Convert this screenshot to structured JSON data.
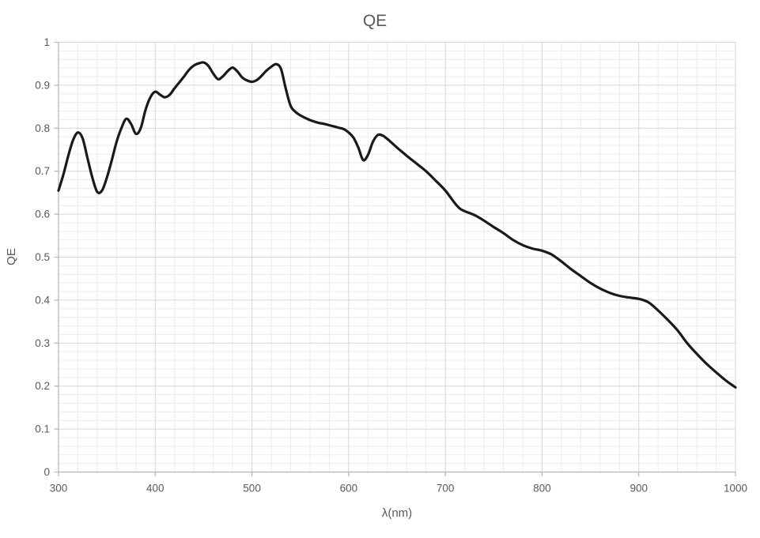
{
  "chart_data": {
    "type": "line",
    "title": "QE",
    "xlabel": "λ(nm)",
    "ylabel": "QE",
    "series_name": "QE",
    "xlim": [
      300,
      1000
    ],
    "ylim": [
      0,
      1
    ],
    "x_major_step": 100,
    "x_minor_step": 20,
    "y_major_step": 0.1,
    "y_minor_step": 0.02,
    "grid": true,
    "legend": false,
    "x_ticks": [
      300,
      400,
      500,
      600,
      700,
      800,
      900,
      1000
    ],
    "x_tick_labels": [
      "300",
      "400",
      "500",
      "600",
      "700",
      "800",
      "900",
      "1000"
    ],
    "y_ticks": [
      0,
      0.1,
      0.2,
      0.3,
      0.4,
      0.5,
      0.6,
      0.7,
      0.8,
      0.9,
      1
    ],
    "y_tick_labels": [
      "0",
      "0.1",
      "0.2",
      "0.3",
      "0.4",
      "0.5",
      "0.6",
      "0.7",
      "0.8",
      "0.9",
      "1"
    ],
    "x": [
      300,
      305,
      310,
      315,
      320,
      325,
      330,
      335,
      340,
      345,
      350,
      355,
      360,
      365,
      370,
      375,
      380,
      385,
      390,
      395,
      400,
      405,
      410,
      415,
      420,
      425,
      430,
      435,
      440,
      445,
      450,
      455,
      460,
      465,
      470,
      475,
      480,
      485,
      490,
      495,
      500,
      505,
      510,
      515,
      520,
      525,
      530,
      535,
      540,
      545,
      550,
      555,
      560,
      565,
      570,
      575,
      580,
      585,
      590,
      595,
      600,
      605,
      610,
      615,
      620,
      625,
      630,
      635,
      640,
      650,
      660,
      670,
      680,
      690,
      700,
      710,
      715,
      720,
      730,
      740,
      750,
      760,
      770,
      780,
      790,
      800,
      810,
      820,
      830,
      840,
      850,
      860,
      870,
      880,
      890,
      900,
      910,
      920,
      930,
      940,
      950,
      960,
      970,
      980,
      990,
      1000
    ],
    "y": [
      0.655,
      0.692,
      0.735,
      0.772,
      0.79,
      0.776,
      0.73,
      0.685,
      0.652,
      0.655,
      0.685,
      0.725,
      0.768,
      0.8,
      0.822,
      0.81,
      0.787,
      0.8,
      0.843,
      0.872,
      0.885,
      0.878,
      0.872,
      0.878,
      0.893,
      0.907,
      0.921,
      0.936,
      0.946,
      0.951,
      0.953,
      0.945,
      0.927,
      0.914,
      0.921,
      0.933,
      0.941,
      0.932,
      0.918,
      0.911,
      0.908,
      0.912,
      0.922,
      0.934,
      0.943,
      0.949,
      0.938,
      0.892,
      0.852,
      0.838,
      0.83,
      0.824,
      0.819,
      0.815,
      0.812,
      0.81,
      0.807,
      0.804,
      0.801,
      0.798,
      0.79,
      0.778,
      0.755,
      0.726,
      0.738,
      0.768,
      0.784,
      0.783,
      0.775,
      0.755,
      0.736,
      0.718,
      0.7,
      0.678,
      0.655,
      0.625,
      0.613,
      0.607,
      0.598,
      0.585,
      0.57,
      0.556,
      0.54,
      0.528,
      0.52,
      0.515,
      0.506,
      0.49,
      0.472,
      0.456,
      0.44,
      0.427,
      0.417,
      0.41,
      0.406,
      0.403,
      0.395,
      0.376,
      0.354,
      0.33,
      0.3,
      0.275,
      0.252,
      0.232,
      0.213,
      0.197
    ],
    "colors": {
      "line": "#1a1a1a",
      "major_grid": "#d6d6d6",
      "minor_grid": "#ececec",
      "axis": "#b3b3b3",
      "text": "#595959",
      "background": "#ffffff"
    }
  }
}
